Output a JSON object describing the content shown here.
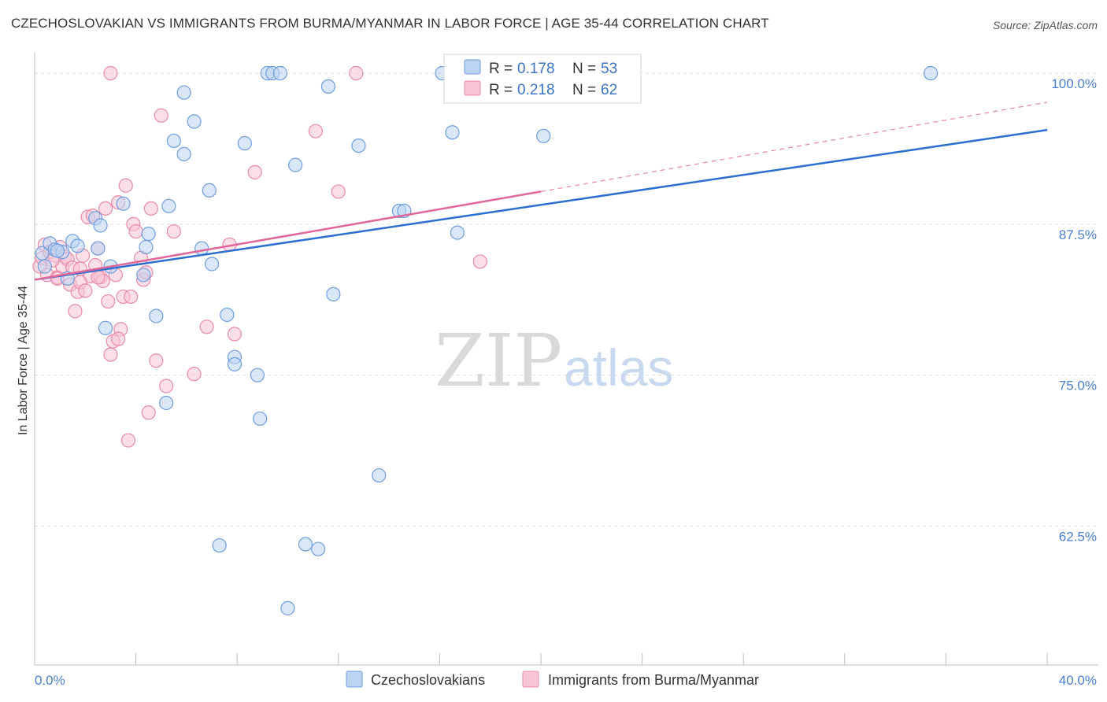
{
  "title": "CZECHOSLOVAKIAN VS IMMIGRANTS FROM BURMA/MYANMAR IN LABOR FORCE | AGE 35-44 CORRELATION CHART",
  "source": "Source: ZipAtlas.com",
  "watermark": {
    "zip": "ZIP",
    "atlas": "atlas"
  },
  "colors": {
    "blue_fill": "#bcd3f2",
    "blue_stroke": "#6e9ee0",
    "blue_line": "#2b6fd0",
    "pink_fill": "#f7c5d5",
    "pink_stroke": "#e88aa8",
    "pink_line": "#e0679a",
    "grid": "#dcdcdc",
    "tick_text": "#4a7fd0"
  },
  "legend_top": {
    "series": [
      {
        "r_label": "R = ",
        "r_value": "0.178",
        "n_label": "N = ",
        "n_value": "53"
      },
      {
        "r_label": "R = ",
        "r_value": "0.218",
        "n_label": "N = ",
        "n_value": "62"
      }
    ]
  },
  "legend_bottom": [
    "Czechoslovakians",
    "Immigrants from Burma/Myanmar"
  ],
  "chart_data": {
    "type": "scatter",
    "title": "CZECHOSLOVAKIAN VS IMMIGRANTS FROM BURMA/MYANMAR IN LABOR FORCE | AGE 35-44 CORRELATION CHART",
    "xlabel": "",
    "ylabel": "In Labor Force | Age 35-44",
    "xlim": [
      0,
      40
    ],
    "ylim": [
      51.0,
      101.5
    ],
    "x_tick_labels": [
      "0.0%",
      "40.0%"
    ],
    "y_ticks": [
      62.5,
      75.0,
      87.5,
      100.0
    ],
    "y_tick_labels": [
      "62.5%",
      "75.0%",
      "87.5%",
      "100.0%"
    ],
    "grid": "horizontal dashed",
    "legend_position": "top-center",
    "series": [
      {
        "name": "Czechoslovakians",
        "r": 0.178,
        "n": 53,
        "trend": {
          "x": [
            0,
            40
          ],
          "y": [
            82.9,
            95.3
          ]
        },
        "points": [
          [
            0.3,
            85.1
          ],
          [
            0.6,
            85.9
          ],
          [
            0.8,
            85.4
          ],
          [
            1.5,
            86.1
          ],
          [
            1.3,
            83.0
          ],
          [
            1.1,
            85.2
          ],
          [
            1.7,
            85.7
          ],
          [
            2.5,
            85.5
          ],
          [
            2.4,
            88.0
          ],
          [
            2.6,
            87.4
          ],
          [
            2.8,
            78.9
          ],
          [
            3.5,
            89.2
          ],
          [
            4.5,
            86.7
          ],
          [
            4.3,
            83.3
          ],
          [
            4.4,
            85.6
          ],
          [
            4.8,
            79.9
          ],
          [
            5.2,
            72.7
          ],
          [
            5.3,
            89.0
          ],
          [
            5.5,
            94.4
          ],
          [
            5.9,
            93.3
          ],
          [
            5.9,
            98.4
          ],
          [
            6.3,
            96.0
          ],
          [
            6.6,
            85.5
          ],
          [
            6.9,
            90.3
          ],
          [
            7.0,
            84.2
          ],
          [
            7.3,
            60.9
          ],
          [
            7.6,
            80.0
          ],
          [
            7.9,
            76.5
          ],
          [
            7.9,
            75.9
          ],
          [
            8.3,
            94.2
          ],
          [
            8.8,
            75.0
          ],
          [
            8.9,
            71.4
          ],
          [
            9.2,
            100.0
          ],
          [
            9.4,
            100.0
          ],
          [
            9.7,
            100.0
          ],
          [
            10.0,
            55.7
          ],
          [
            10.3,
            92.4
          ],
          [
            10.7,
            61.0
          ],
          [
            11.2,
            60.6
          ],
          [
            11.6,
            98.9
          ],
          [
            11.8,
            81.7
          ],
          [
            12.8,
            94.0
          ],
          [
            13.6,
            66.7
          ],
          [
            14.4,
            88.6
          ],
          [
            14.6,
            88.6
          ],
          [
            16.1,
            100.0
          ],
          [
            16.5,
            95.1
          ],
          [
            16.7,
            86.8
          ],
          [
            20.1,
            94.8
          ],
          [
            35.4,
            100.0
          ],
          [
            0.4,
            84.0
          ],
          [
            0.9,
            85.3
          ],
          [
            3.0,
            84.0
          ]
        ]
      },
      {
        "name": "Immigrants from Burma/Myanmar",
        "r": 0.218,
        "n": 62,
        "trend": {
          "x": [
            0,
            20
          ],
          "y": [
            82.9,
            90.2
          ]
        },
        "trend_extension": {
          "x": [
            20,
            40
          ],
          "y": [
            90.2,
            97.6
          ]
        },
        "points": [
          [
            0.2,
            84.0
          ],
          [
            0.3,
            84.7
          ],
          [
            0.4,
            85.8
          ],
          [
            0.5,
            83.3
          ],
          [
            0.6,
            85.2
          ],
          [
            0.8,
            84.9
          ],
          [
            0.9,
            83.1
          ],
          [
            1.0,
            85.6
          ],
          [
            1.1,
            84.0
          ],
          [
            1.2,
            84.8
          ],
          [
            1.3,
            84.6
          ],
          [
            1.4,
            82.5
          ],
          [
            1.5,
            83.9
          ],
          [
            1.6,
            80.3
          ],
          [
            1.7,
            81.9
          ],
          [
            1.8,
            83.8
          ],
          [
            1.9,
            84.9
          ],
          [
            2.1,
            88.1
          ],
          [
            2.2,
            83.2
          ],
          [
            2.3,
            88.2
          ],
          [
            2.4,
            84.1
          ],
          [
            2.5,
            85.5
          ],
          [
            2.6,
            83.1
          ],
          [
            2.7,
            82.8
          ],
          [
            2.8,
            88.8
          ],
          [
            2.9,
            81.1
          ],
          [
            3.0,
            76.7
          ],
          [
            3.1,
            77.8
          ],
          [
            3.2,
            83.3
          ],
          [
            3.3,
            89.3
          ],
          [
            3.4,
            78.8
          ],
          [
            3.5,
            81.5
          ],
          [
            3.6,
            90.7
          ],
          [
            3.7,
            69.6
          ],
          [
            3.8,
            81.5
          ],
          [
            3.9,
            87.5
          ],
          [
            4.0,
            86.9
          ],
          [
            4.2,
            84.7
          ],
          [
            4.3,
            82.9
          ],
          [
            4.4,
            83.5
          ],
          [
            4.5,
            71.9
          ],
          [
            4.6,
            88.8
          ],
          [
            4.8,
            76.2
          ],
          [
            5.0,
            96.5
          ],
          [
            5.2,
            74.1
          ],
          [
            5.5,
            86.9
          ],
          [
            6.3,
            75.1
          ],
          [
            6.8,
            79.0
          ],
          [
            7.7,
            85.8
          ],
          [
            7.9,
            78.4
          ],
          [
            8.7,
            91.8
          ],
          [
            11.1,
            95.2
          ],
          [
            12.0,
            90.2
          ],
          [
            12.7,
            100.0
          ],
          [
            17.6,
            84.4
          ],
          [
            0.7,
            84.5
          ],
          [
            1.8,
            82.7
          ],
          [
            2.5,
            83.1
          ],
          [
            3.3,
            78.0
          ],
          [
            3.0,
            100.0
          ],
          [
            0.9,
            83.0
          ],
          [
            2.0,
            82.0
          ]
        ]
      }
    ]
  }
}
